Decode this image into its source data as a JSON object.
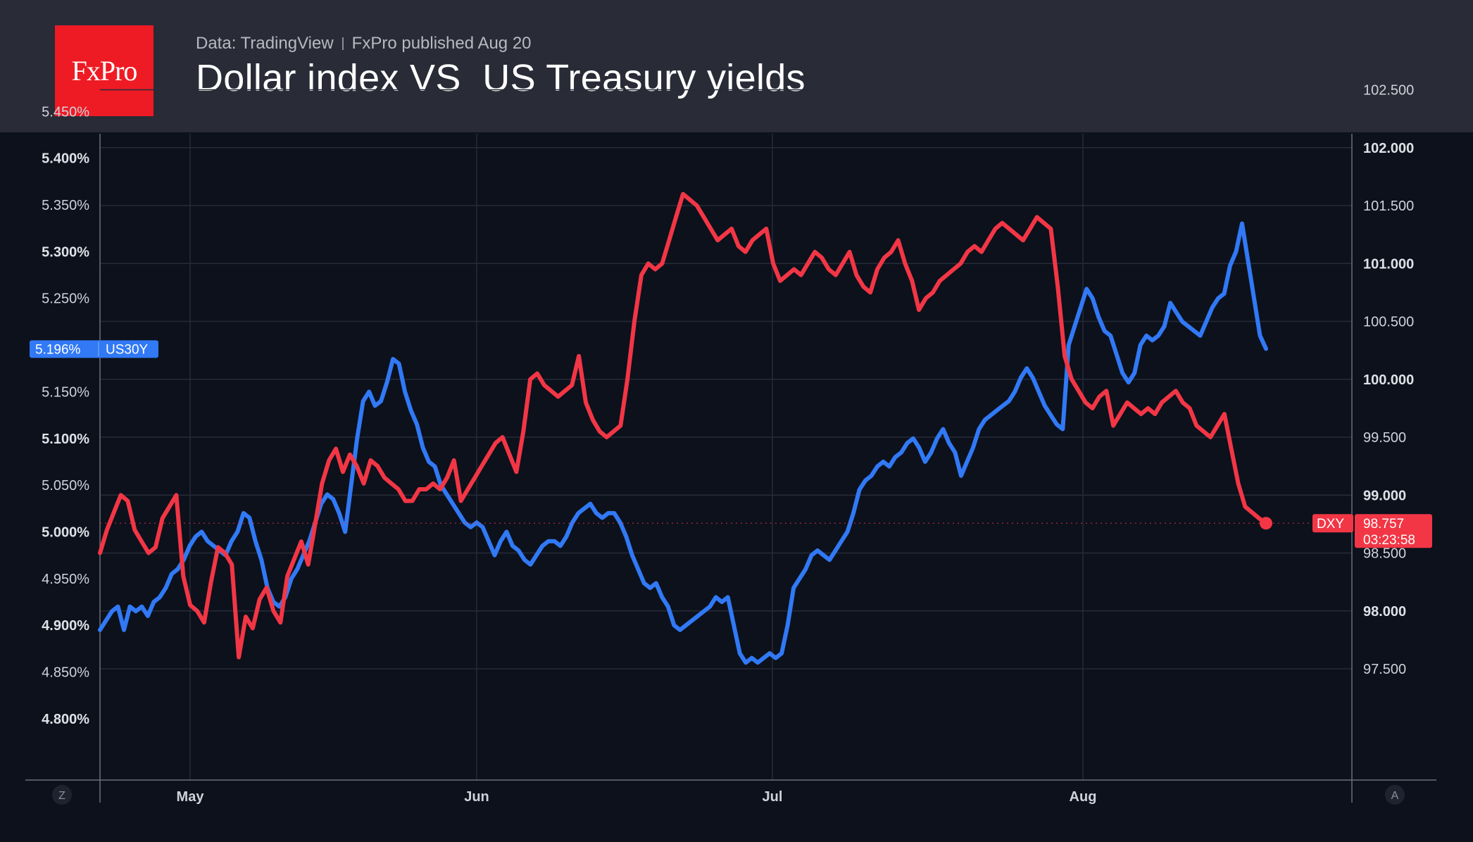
{
  "header": {
    "logo_text": "FxPro",
    "source_label": "Data: TradingView",
    "publish_label": "FxPro published Aug 20",
    "title": "Dollar index VS  US Treasury yields"
  },
  "corner_buttons": {
    "left": "Z",
    "right": "A"
  },
  "chart_data": {
    "type": "line",
    "title": "Dollar index VS  US Treasury yields",
    "x_ticks": [
      "May",
      "Jun",
      "Jul",
      "Aug"
    ],
    "left_axis": {
      "ticks": [
        "5.450%",
        "5.400%",
        "5.350%",
        "5.300%",
        "5.250%",
        "5.150%",
        "5.100%",
        "5.050%",
        "5.000%",
        "4.950%",
        "4.900%",
        "4.850%",
        "4.800%"
      ],
      "ylim": [
        4.79,
        5.46
      ]
    },
    "right_axis": {
      "ticks": [
        "102.500",
        "102.000",
        "101.500",
        "101.000",
        "100.500",
        "100.000",
        "99.500",
        "99.000",
        "98.500",
        "98.000",
        "97.500"
      ],
      "ylim": [
        97.1,
        102.6
      ]
    },
    "grid": true,
    "series": [
      {
        "name": "US30Y",
        "axis": "left",
        "color": "#3179f5",
        "last_value_label": "5.196%",
        "values": [
          4.895,
          4.905,
          4.915,
          4.92,
          4.895,
          4.92,
          4.915,
          4.92,
          4.91,
          4.925,
          4.93,
          4.94,
          4.955,
          4.96,
          4.97,
          4.985,
          4.995,
          5.0,
          4.99,
          4.985,
          4.98,
          4.975,
          4.99,
          5.0,
          5.02,
          5.015,
          4.99,
          4.97,
          4.94,
          4.925,
          4.92,
          4.93,
          4.95,
          4.96,
          4.975,
          4.99,
          5.01,
          5.03,
          5.04,
          5.035,
          5.02,
          5.0,
          5.05,
          5.1,
          5.14,
          5.15,
          5.135,
          5.14,
          5.16,
          5.185,
          5.18,
          5.15,
          5.13,
          5.115,
          5.09,
          5.075,
          5.07,
          5.05,
          5.04,
          5.03,
          5.02,
          5.01,
          5.005,
          5.01,
          5.005,
          4.99,
          4.975,
          4.99,
          5.0,
          4.985,
          4.98,
          4.97,
          4.965,
          4.975,
          4.985,
          4.99,
          4.99,
          4.985,
          4.995,
          5.01,
          5.02,
          5.025,
          5.03,
          5.02,
          5.015,
          5.02,
          5.02,
          5.01,
          4.995,
          4.975,
          4.96,
          4.945,
          4.94,
          4.945,
          4.93,
          4.92,
          4.9,
          4.895,
          4.9,
          4.905,
          4.91,
          4.915,
          4.92,
          4.93,
          4.925,
          4.93,
          4.9,
          4.87,
          4.86,
          4.865,
          4.86,
          4.865,
          4.87,
          4.865,
          4.87,
          4.9,
          4.94,
          4.95,
          4.96,
          4.975,
          4.98,
          4.975,
          4.97,
          4.98,
          4.99,
          5.0,
          5.02,
          5.045,
          5.055,
          5.06,
          5.07,
          5.075,
          5.07,
          5.08,
          5.085,
          5.095,
          5.1,
          5.09,
          5.075,
          5.085,
          5.1,
          5.11,
          5.095,
          5.085,
          5.06,
          5.075,
          5.09,
          5.11,
          5.12,
          5.125,
          5.13,
          5.135,
          5.14,
          5.15,
          5.165,
          5.175,
          5.165,
          5.15,
          5.135,
          5.125,
          5.115,
          5.11,
          5.2,
          5.22,
          5.24,
          5.26,
          5.25,
          5.23,
          5.215,
          5.21,
          5.19,
          5.17,
          5.16,
          5.17,
          5.2,
          5.21,
          5.205,
          5.21,
          5.22,
          5.245,
          5.235,
          5.225,
          5.22,
          5.215,
          5.21,
          5.225,
          5.24,
          5.25,
          5.255,
          5.285,
          5.3,
          5.33,
          5.29,
          5.25,
          5.21,
          5.196
        ]
      },
      {
        "name": "DXY",
        "axis": "right",
        "color": "#f23645",
        "last_value_label": "98.757",
        "countdown_label": "03:23:58",
        "values": [
          98.5,
          98.7,
          98.85,
          99.0,
          98.95,
          98.7,
          98.6,
          98.5,
          98.55,
          98.8,
          98.9,
          99.0,
          98.3,
          98.05,
          98.0,
          97.9,
          98.25,
          98.55,
          98.5,
          98.4,
          97.6,
          97.95,
          97.85,
          98.1,
          98.2,
          98.0,
          97.9,
          98.3,
          98.45,
          98.6,
          98.4,
          98.75,
          99.1,
          99.3,
          99.4,
          99.2,
          99.35,
          99.25,
          99.1,
          99.3,
          99.25,
          99.15,
          99.1,
          99.05,
          98.95,
          98.95,
          99.05,
          99.05,
          99.1,
          99.05,
          99.15,
          99.3,
          98.95,
          99.05,
          99.15,
          99.25,
          99.35,
          99.45,
          99.5,
          99.35,
          99.2,
          99.55,
          100.0,
          100.05,
          99.95,
          99.9,
          99.85,
          99.9,
          99.95,
          100.2,
          99.8,
          99.65,
          99.55,
          99.5,
          99.55,
          99.6,
          100.0,
          100.5,
          100.9,
          101.0,
          100.95,
          101.0,
          101.2,
          101.4,
          101.6,
          101.55,
          101.5,
          101.4,
          101.3,
          101.2,
          101.25,
          101.3,
          101.15,
          101.1,
          101.2,
          101.25,
          101.3,
          101.0,
          100.85,
          100.9,
          100.95,
          100.9,
          101.0,
          101.1,
          101.05,
          100.95,
          100.9,
          101.0,
          101.1,
          100.9,
          100.8,
          100.75,
          100.95,
          101.05,
          101.1,
          101.2,
          101.0,
          100.85,
          100.6,
          100.7,
          100.75,
          100.85,
          100.9,
          100.95,
          101.0,
          101.1,
          101.15,
          101.1,
          101.2,
          101.3,
          101.35,
          101.3,
          101.25,
          101.2,
          101.3,
          101.4,
          101.35,
          101.3,
          100.8,
          100.2,
          100.0,
          99.9,
          99.8,
          99.75,
          99.85,
          99.9,
          99.6,
          99.7,
          99.8,
          99.75,
          99.7,
          99.75,
          99.7,
          99.8,
          99.85,
          99.9,
          99.8,
          99.75,
          99.6,
          99.55,
          99.5,
          99.6,
          99.7,
          99.4,
          99.1,
          98.9,
          98.85,
          98.8,
          98.757
        ]
      }
    ]
  }
}
